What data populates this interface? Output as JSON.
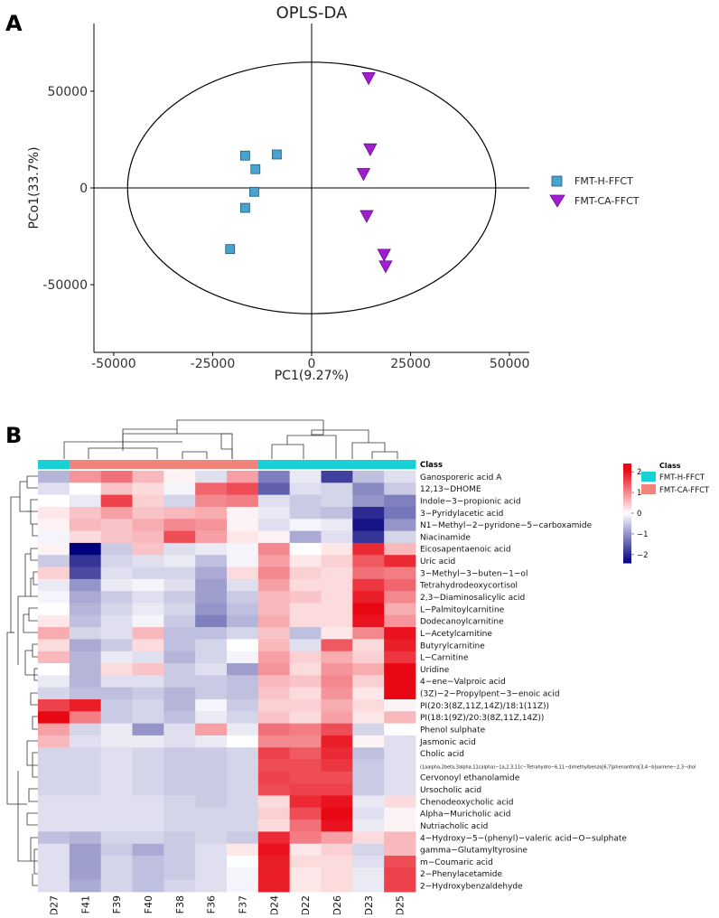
{
  "chart_data": [
    {
      "panel": "A",
      "type": "scatter",
      "title": "OPLS-DA",
      "xlabel": "PC1(9.27%)",
      "ylabel": "PCo1(33.7%)",
      "xlim": [
        -55000,
        55000
      ],
      "ylim": [
        -85000,
        85000
      ],
      "xticks": [
        -50000,
        -25000,
        0,
        25000,
        50000
      ],
      "xtick_labels": [
        "-50000",
        "-25000",
        "0",
        "25000",
        "50000"
      ],
      "yticks": [
        -50000,
        0,
        50000
      ],
      "ytick_labels": [
        "-50000",
        "0",
        "50000"
      ],
      "ellipse": {
        "cx": 0,
        "cy": 0,
        "rx": 46500,
        "ry": 65000
      },
      "colors": {
        "FMT-H-FFCT": "#4aa3cf",
        "FMT-CA-FFCT": "#a11ed0"
      },
      "legend_position": "right",
      "series": [
        {
          "name": "FMT-H-FFCT",
          "marker": "square",
          "points": [
            [
              -8800,
              17300
            ],
            [
              -16800,
              16700
            ],
            [
              -14200,
              9700
            ],
            [
              -14500,
              -2000
            ],
            [
              -16800,
              -10300
            ],
            [
              -20600,
              -31600
            ]
          ]
        },
        {
          "name": "FMT-CA-FFCT",
          "marker": "triangle-down",
          "points": [
            [
              14400,
              56800
            ],
            [
              14800,
              20000
            ],
            [
              13100,
              7200
            ],
            [
              13900,
              -14500
            ],
            [
              18300,
              -34500
            ],
            [
              18700,
              -40500
            ]
          ]
        }
      ]
    },
    {
      "panel": "B",
      "type": "heatmap",
      "samples": [
        "D27",
        "F41",
        "F39",
        "F40",
        "F38",
        "F36",
        "F37",
        "D24",
        "D22",
        "D26",
        "D23",
        "D25"
      ],
      "class_label": "Class",
      "class_values": [
        "FMT-H-FFCT",
        "FMT-CA-FFCT",
        "FMT-CA-FFCT",
        "FMT-CA-FFCT",
        "FMT-CA-FFCT",
        "FMT-CA-FFCT",
        "FMT-CA-FFCT",
        "FMT-H-FFCT",
        "FMT-H-FFCT",
        "FMT-H-FFCT",
        "FMT-H-FFCT",
        "FMT-H-FFCT"
      ],
      "class_colors": {
        "FMT-H-FFCT": "#18d1d6",
        "FMT-CA-FFCT": "#f2837a"
      },
      "scale": {
        "min": -2.4,
        "max": 2.4,
        "ticks": [
          2,
          1,
          0,
          -1,
          -2
        ],
        "tick_labels": [
          "2",
          "1",
          "0",
          "−1",
          "−2"
        ]
      },
      "metabolites": [
        "Ganosporeric acid A",
        "12,13−DHOME",
        "Indole−3−propionic acid",
        "3−Pyridylacetic acid",
        "N1−Methyl−2−pyridone−5−carboxamide",
        "Niacinamide",
        "Eicosapentaenoic acid",
        "Uric acid",
        "3−Methyl−3−buten−1−ol",
        "Tetrahydrodeoxycortisol",
        "2,3−Diaminosalicylic acid",
        "L−Palmitoylcarnitine",
        "Dodecanoylcarnitine",
        "L−Acetylcarnitine",
        "Butyrylcarnitine",
        "L−Carnitine",
        "Uridine",
        "4−ene−Valproic acid",
        "(3Z)−2−Propylpent−3−enoic acid",
        "PI(20:3(8Z,11Z,14Z)/18:1(11Z))",
        "PI(18:1(9Z)/20:3(8Z,11Z,14Z))",
        "Phenol sulphate",
        "Jasmonic acid",
        "Cholic acid",
        "(1aalpha,2beta,3alpha,11calpha)−1a,2,3,11c−Tetrahydro−6,11−dimethylbenzo[6,7]phenanthro[3,4−b]oxirene−2,3−diol",
        "Cervonoyl ethanolamide",
        "Ursocholic acid",
        "Chenodeoxycholic acid",
        "Alpha−Muricholic acid",
        "Nutriacholic acid",
        "4−Hydroxy−5−(phenyl)−valeric acid−O−sulphate",
        "gamma−Glutamyltyrosine",
        "m−Coumaric acid",
        "2−Phenylacetamide",
        "2−Hydroxybenzaldehyde"
      ],
      "values": [
        [
          -0.7,
          0.9,
          1.2,
          0.6,
          0.1,
          -0.3,
          0.8,
          -1.2,
          -0.2,
          -1.8,
          -0.6,
          -0.3
        ],
        [
          -0.3,
          0.0,
          0.5,
          0.3,
          -0.1,
          1.3,
          1.5,
          -1.5,
          -0.3,
          -0.4,
          -1.1,
          -0.5
        ],
        [
          0.0,
          -0.2,
          1.6,
          0.4,
          -0.4,
          1.0,
          1.1,
          -0.3,
          -0.5,
          -0.4,
          -1.0,
          -1.2
        ],
        [
          0.2,
          0.5,
          0.8,
          0.5,
          0.6,
          0.7,
          0.1,
          -0.2,
          -0.5,
          -0.6,
          -2.0,
          -1.3
        ],
        [
          0.1,
          0.6,
          0.5,
          0.7,
          1.0,
          0.9,
          0.1,
          -0.3,
          -0.1,
          -0.2,
          -2.2,
          -1.0
        ],
        [
          -0.1,
          0.3,
          0.5,
          0.6,
          1.5,
          0.8,
          0.2,
          0.1,
          -0.8,
          -0.3,
          -1.9,
          -0.4
        ],
        [
          0.1,
          -2.4,
          -0.5,
          0.5,
          -0.3,
          -0.2,
          -0.1,
          1.0,
          0.0,
          0.2,
          1.8,
          0.6
        ],
        [
          -0.5,
          -1.9,
          -0.4,
          -0.3,
          -0.2,
          -0.6,
          -0.1,
          0.8,
          0.2,
          0.4,
          1.4,
          1.8
        ],
        [
          0.4,
          -1.7,
          -0.3,
          -0.4,
          -0.4,
          -0.8,
          0.3,
          1.0,
          0.4,
          0.3,
          1.2,
          1.1
        ],
        [
          -0.2,
          -1.0,
          -0.2,
          -0.1,
          -0.3,
          -0.9,
          -0.3,
          0.8,
          0.3,
          0.3,
          1.7,
          1.3
        ],
        [
          -0.1,
          -0.8,
          -0.5,
          -0.3,
          -0.5,
          -0.9,
          -0.5,
          0.6,
          0.5,
          0.3,
          1.9,
          1.0
        ],
        [
          0.0,
          -0.7,
          -0.4,
          -0.2,
          -0.4,
          -1.0,
          -0.6,
          0.6,
          0.3,
          0.3,
          2.1,
          0.7
        ],
        [
          0.2,
          -0.6,
          -0.3,
          -0.1,
          -0.5,
          -1.2,
          -0.7,
          0.7,
          0.3,
          0.3,
          2.0,
          0.9
        ],
        [
          0.7,
          -0.4,
          -0.3,
          0.6,
          -0.6,
          -0.6,
          -0.4,
          0.5,
          -0.6,
          0.2,
          1.0,
          2.0
        ],
        [
          0.3,
          -0.8,
          -0.5,
          0.3,
          -0.6,
          -0.4,
          0.0,
          0.6,
          -0.3,
          1.4,
          0.3,
          1.9
        ],
        [
          0.6,
          -0.7,
          -0.2,
          -0.3,
          -0.7,
          -0.4,
          -0.1,
          0.8,
          0.4,
          0.7,
          0.4,
          1.7
        ],
        [
          0.0,
          -0.7,
          0.3,
          0.5,
          -0.5,
          -0.3,
          -0.9,
          0.9,
          0.3,
          0.9,
          0.7,
          2.1
        ],
        [
          -0.2,
          -0.7,
          -0.3,
          -0.3,
          -0.5,
          -0.5,
          -0.6,
          0.6,
          0.5,
          1.0,
          0.4,
          2.2
        ],
        [
          -0.4,
          -0.6,
          -0.6,
          -0.5,
          -0.7,
          -0.5,
          -0.6,
          0.5,
          0.3,
          0.9,
          0.2,
          2.1
        ],
        [
          1.6,
          1.9,
          -0.5,
          -0.4,
          -0.7,
          -0.1,
          -0.5,
          0.4,
          0.4,
          0.7,
          0.3,
          0.1
        ],
        [
          2.2,
          1.1,
          -0.5,
          -0.4,
          -0.6,
          -0.2,
          -0.4,
          0.5,
          0.3,
          0.8,
          0.2,
          0.6
        ],
        [
          0.8,
          -0.4,
          -0.2,
          -1.0,
          -0.3,
          0.8,
          -0.2,
          1.2,
          1.1,
          1.5,
          -0.4,
          0.0
        ],
        [
          0.6,
          -0.3,
          -0.2,
          -0.2,
          -0.3,
          -0.2,
          0.0,
          1.0,
          1.0,
          1.9,
          0.1,
          -0.3
        ],
        [
          -0.4,
          -0.4,
          -0.3,
          -0.4,
          -0.5,
          -0.5,
          -0.4,
          1.6,
          1.4,
          1.8,
          -0.6,
          -0.3
        ],
        [
          -0.4,
          -0.4,
          -0.3,
          -0.4,
          -0.5,
          -0.5,
          -0.4,
          1.5,
          1.5,
          1.7,
          -0.5,
          -0.3
        ],
        [
          -0.4,
          -0.4,
          -0.3,
          -0.4,
          -0.5,
          -0.5,
          -0.4,
          1.6,
          1.5,
          1.5,
          -0.5,
          -0.3
        ],
        [
          -0.4,
          -0.4,
          -0.3,
          -0.4,
          -0.5,
          -0.5,
          -0.4,
          1.5,
          1.6,
          1.6,
          -0.5,
          -0.3
        ],
        [
          -0.3,
          -0.3,
          -0.3,
          -0.3,
          -0.4,
          -0.5,
          -0.4,
          0.3,
          1.8,
          2.0,
          -0.2,
          0.3
        ],
        [
          -0.3,
          -0.3,
          -0.3,
          -0.3,
          -0.4,
          -0.4,
          -0.4,
          0.4,
          1.5,
          2.4,
          -0.3,
          0.1
        ],
        [
          -0.3,
          -0.3,
          -0.3,
          -0.3,
          -0.4,
          -0.4,
          -0.4,
          0.3,
          1.2,
          2.0,
          -0.2,
          0.1
        ],
        [
          -0.6,
          -0.7,
          -0.4,
          -0.4,
          -0.5,
          -0.4,
          -0.5,
          1.8,
          1.1,
          0.8,
          0.3,
          0.6
        ],
        [
          -0.3,
          -0.9,
          -0.5,
          -0.8,
          -0.5,
          -0.3,
          0.2,
          2.0,
          0.2,
          0.4,
          -0.4,
          0.6
        ],
        [
          -0.3,
          -0.9,
          -0.4,
          -0.6,
          -0.5,
          -0.3,
          0.0,
          1.9,
          0.3,
          0.3,
          -0.3,
          1.5
        ],
        [
          -0.3,
          -0.9,
          -0.4,
          -0.6,
          -0.5,
          -0.3,
          -0.1,
          1.9,
          0.2,
          0.3,
          -0.2,
          1.6
        ],
        [
          -0.3,
          -0.8,
          -0.4,
          -0.6,
          -0.4,
          -0.3,
          -0.1,
          1.9,
          0.2,
          0.3,
          -0.2,
          1.6
        ]
      ]
    }
  ],
  "panel_letters": {
    "a": "A",
    "b": "B"
  }
}
